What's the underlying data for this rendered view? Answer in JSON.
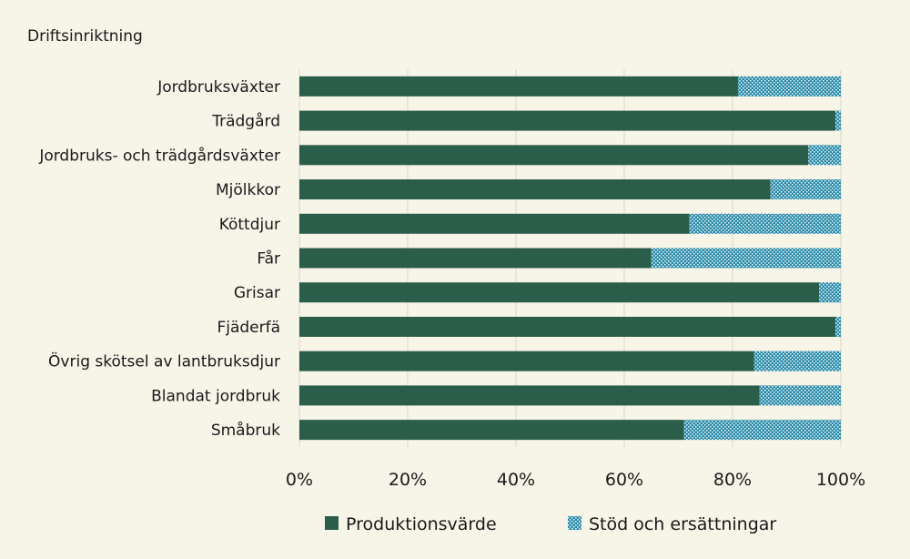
{
  "chart_data": {
    "type": "bar",
    "orientation": "horizontal",
    "stacked": "percent",
    "ylabel": "Driftsinriktning",
    "categories": [
      "Jordbruksväxter",
      "Trädgård",
      "Jordbruks- och trädgårdsväxter",
      "Mjölkkor",
      "Köttdjur",
      "Får",
      "Grisar",
      "Fjäderfä",
      "Övrig skötsel av lantbruksdjur",
      "Blandat jordbruk",
      "Småbruk"
    ],
    "series": [
      {
        "name": "Produktionsvärde",
        "color": "#2b5e4a",
        "values": [
          81,
          99,
          94,
          87,
          72,
          65,
          96,
          99,
          84,
          85,
          71
        ]
      },
      {
        "name": "Stöd och ersättningar",
        "color": "#2a8aa8",
        "pattern": "dotted",
        "values": [
          19,
          1,
          6,
          13,
          28,
          35,
          4,
          1,
          16,
          15,
          29
        ]
      }
    ],
    "xlim": [
      0,
      100
    ],
    "xticks": [
      "0%",
      "20%",
      "40%",
      "60%",
      "80%",
      "100%"
    ],
    "grid": true,
    "legend_position": "bottom"
  }
}
